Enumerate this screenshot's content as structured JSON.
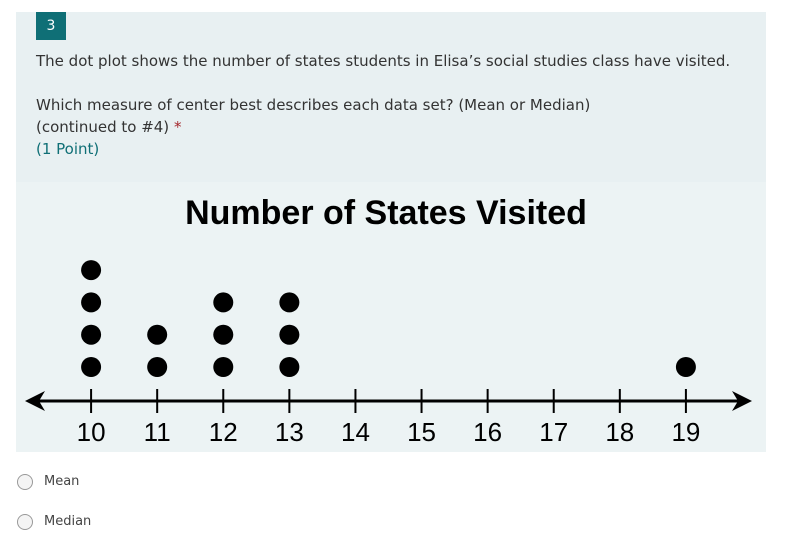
{
  "question": {
    "number": "3",
    "text": "The dot plot shows the number of states students in Elisa’s social studies class have visited.",
    "prompt": "Which measure of center best describes each data set? (Mean or Median)",
    "continuation": "(continued to #4)",
    "required_mark": "*",
    "points": "(1 Point)"
  },
  "chart_data": {
    "type": "dot",
    "title": "Number of States Visited",
    "x": [
      10,
      11,
      12,
      13,
      19
    ],
    "values": [
      4,
      2,
      3,
      3,
      1
    ],
    "color": "#000000",
    "xlim": [
      9,
      20
    ],
    "xticks": [
      10,
      11,
      12,
      13,
      14,
      15,
      16,
      17,
      18,
      19
    ]
  },
  "options": [
    "Mean",
    "Median"
  ]
}
